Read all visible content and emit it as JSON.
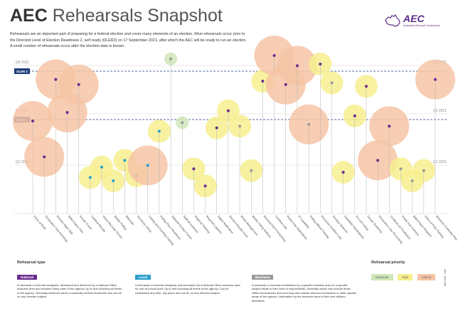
{
  "header": {
    "title_bold": "AEC",
    "title_light": "Rehearsals Snapshot",
    "intro": [
      "Rehearsals are an important part of preparing for a federal election and cover many elements of an election. Most rehearsals occur prior to",
      "the Directed Level of Election Readiness 2, self ready (DLER2) on 17 September 2021, after which the AEC will be ready to run an election.",
      "A small number of rehearsals occur after the election date is known."
    ]
  },
  "logo": {
    "name": "AEC",
    "subtitle": "Australian Electoral Commission",
    "icon": "australia-map-icon"
  },
  "colors": {
    "national": "#6a2c8e",
    "local": "#2a9fc9",
    "business": "#9b9b9b",
    "moderate": "#cfe6b8",
    "high": "#f7ee8e",
    "critical": "#f6c4a6",
    "dler": "#1f3e7a"
  },
  "chart_data": {
    "type": "scatter",
    "quarters": {
      "left": [
        "Q4 2021",
        "Q3 2021",
        "Q1 2021"
      ],
      "right": [
        "Q4 2021",
        "Q3 2021",
        "Q1 2021"
      ]
    },
    "reference_lines": [
      "DLER 2",
      "DLER 1"
    ],
    "priority_levels": [
      "Moderate",
      "High",
      "Critical"
    ],
    "points": [
      {
        "label": "Close of Rolls",
        "type": "national",
        "priority": "critical",
        "quarter": "Q3 2021"
      },
      {
        "label": "Declaration Vote Exchange",
        "type": "national",
        "priority": "critical",
        "quarter": "Q1 2021"
      },
      {
        "label": "Election Night Tally",
        "type": "national",
        "priority": "critical",
        "quarter": "Q4 2021"
      },
      {
        "label": "Ballot Paper Print",
        "type": "national",
        "priority": "critical",
        "quarter": "Q3 2021"
      },
      {
        "label": "Senate Count",
        "type": "national",
        "priority": "critical",
        "quarter": "Q4 2021"
      },
      {
        "label": "Cardinal Results",
        "type": "local",
        "priority": "high",
        "quarter": "Q1 2021"
      },
      {
        "label": "Home Recorder Device",
        "type": "local",
        "priority": "high",
        "quarter": "Q1 2021"
      },
      {
        "label": "Mobile Polling",
        "type": "local",
        "priority": "high",
        "quarter": "Q1 2021"
      },
      {
        "label": "Materials",
        "type": "local",
        "priority": "high",
        "quarter": "Q1 2021"
      },
      {
        "label": "Overseas Voting",
        "type": "local",
        "priority": "high",
        "quarter": "Q1 2021"
      },
      {
        "label": "Linking and Counting Training",
        "type": "local",
        "priority": "critical",
        "quarter": "Q1 2021"
      },
      {
        "label": "Polling Place Readiness",
        "type": "local",
        "priority": "high",
        "quarter": "Q3 2021"
      },
      {
        "label": "National Contact Centre",
        "type": "business",
        "priority": "moderate",
        "quarter": "Q4 2021"
      },
      {
        "label": "Staff Recruitment",
        "type": "business",
        "priority": "moderate",
        "quarter": "Q3 2021"
      },
      {
        "label": "Regional Training",
        "type": "national",
        "priority": "high",
        "quarter": "Q1 2021"
      },
      {
        "label": "Regional Logistics",
        "type": "national",
        "priority": "high",
        "quarter": "Q1 2021"
      },
      {
        "label": "Digital Notification",
        "type": "national",
        "priority": "high",
        "quarter": "Q3 2021"
      },
      {
        "label": "Election Results Feed",
        "type": "national",
        "priority": "high",
        "quarter": "Q3 2021"
      },
      {
        "label": "Media Management",
        "type": "business",
        "priority": "high",
        "quarter": "Q3 2021"
      },
      {
        "label": "Mobile Voting Stations",
        "type": "business",
        "priority": "high",
        "quarter": "Q1 2021"
      },
      {
        "label": "Electoral Roll Provisioning",
        "type": "national",
        "priority": "high",
        "quarter": "Q4 2021"
      },
      {
        "label": "Certified Lists",
        "type": "national",
        "priority": "critical",
        "quarter": "Q4 2021"
      },
      {
        "label": "Postal Vote Applications",
        "type": "national",
        "priority": "critical",
        "quarter": "Q4 2021"
      },
      {
        "label": "IT Capability",
        "type": "national",
        "priority": "critical",
        "quarter": "Q4 2021"
      },
      {
        "label": "Polling Official Training",
        "type": "business",
        "priority": "critical",
        "quarter": "Q3 2021"
      },
      {
        "label": "Electronic Certified Lists",
        "type": "national",
        "priority": "high",
        "quarter": "Q4 2021"
      },
      {
        "label": "Scrutiny Systems",
        "type": "business",
        "priority": "high",
        "quarter": "Q4 2021"
      },
      {
        "label": "Candidate Nominations",
        "type": "national",
        "priority": "high",
        "quarter": "Q1 2021"
      },
      {
        "label": "Pre-poll Voting",
        "type": "national",
        "priority": "high",
        "quarter": "Q3 2021"
      },
      {
        "label": "Senate Scanning",
        "type": "national",
        "priority": "high",
        "quarter": "Q4 2021"
      },
      {
        "label": "Declaration Vote Processing",
        "type": "national",
        "priority": "critical",
        "quarter": "Q1 2021"
      },
      {
        "label": "Certified List Production",
        "type": "national",
        "priority": "critical",
        "quarter": "Q3 2021"
      },
      {
        "label": "Postal Vote Delivery",
        "type": "business",
        "priority": "high",
        "quarter": "Q1 2021"
      },
      {
        "label": "Ballot Paper Dispatch",
        "type": "business",
        "priority": "high",
        "quarter": "Q1 2021"
      },
      {
        "label": "Close of Polls Training",
        "type": "business",
        "priority": "high",
        "quarter": "Q1 2021"
      },
      {
        "label": "Business Continuity Plan",
        "type": "national",
        "priority": "critical",
        "quarter": "Q4 2021"
      }
    ]
  },
  "legend": {
    "type_heading": "Rehearsal type",
    "national_label": "National",
    "national_text": "A rehearsal or exercise designed, developed and delivered by a National Office business area and includes many parts of the agency. Up to and including all levels of the agency. Generally delivered within a nationally defined timeframe and can be on any relevant subject.",
    "local_label": "Local",
    "local_text": "A rehearsal or exercise designed and developed by a National Office business area for use at a local level. Up to and including all levels of the agency. Can be undertaken any time, any place and can be on any relevant subject.",
    "business_label": "Business",
    "business_text": "A rehearsal or exercise undertaken by a specific business area on a specific subject relate to their area of responsibility. Generally would only include those within the business area and may also include relevant contractors or other specific areas of the agency. Undertaken by the business area in their own defined timeframe.",
    "priority_heading": "Rehearsal priority",
    "priority_moderate": "Moderate",
    "priority_high": "High",
    "priority_critical": "Critical",
    "side_code": "AEC1165 - 0921"
  }
}
